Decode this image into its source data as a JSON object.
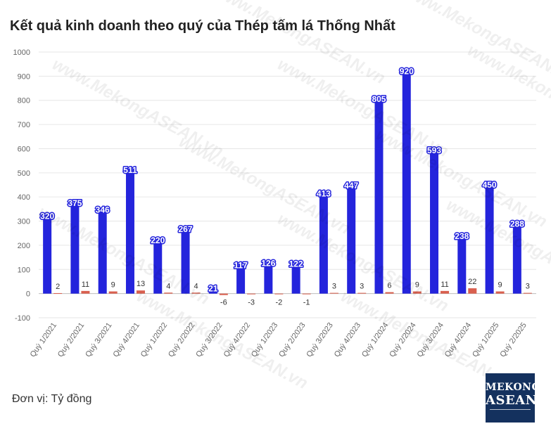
{
  "title": "Kết quả kinh doanh theo quý của Thép tấm lá Thống Nhất",
  "unit_label": "Đơn vị: Tỷ đồng",
  "watermark_text": "www.MekongASEAN.vn",
  "logo": {
    "line1": "MEKONG",
    "line2": "ASEAN"
  },
  "colors": {
    "series1": "#2424dc",
    "series2": "#d9604f",
    "grid": "#e6e6e6",
    "tick": "#666666"
  },
  "chart_data": {
    "type": "bar",
    "categories": [
      "Quý 1/2021",
      "Quý 2/2021",
      "Quý 3/2021",
      "Quý 4/2021",
      "Quý 1/2022",
      "Quý 2/2022",
      "Quý 3/2022",
      "Quý 4/2022",
      "Quý 1/2023",
      "Quý 2/2023",
      "Quý 3/2023",
      "Quý 4/2023",
      "Quý 1/2024",
      "Quý 2/2024",
      "Quý 3/2024",
      "Quý 4/2024",
      "Quý 1/2025",
      "Quý 2/2025"
    ],
    "series": [
      {
        "values": [
          320,
          375,
          346,
          511,
          220,
          267,
          21,
          117,
          126,
          122,
          413,
          447,
          805,
          920,
          593,
          238,
          450,
          288
        ]
      },
      {
        "values": [
          2,
          11,
          9,
          13,
          4,
          4,
          -6,
          -3,
          -2,
          -1,
          3,
          3,
          6,
          9,
          11,
          22,
          9,
          3
        ]
      }
    ],
    "ylim": [
      -100,
      1000
    ],
    "yticks": [
      -100,
      0,
      100,
      200,
      300,
      400,
      500,
      600,
      700,
      800,
      900,
      1000
    ],
    "ytick_labels": [
      "-100",
      "0",
      "100",
      "200",
      "300",
      "400",
      "500",
      "600",
      "700",
      "800",
      "900",
      "1000"
    ],
    "grid": true,
    "legend": "none"
  }
}
